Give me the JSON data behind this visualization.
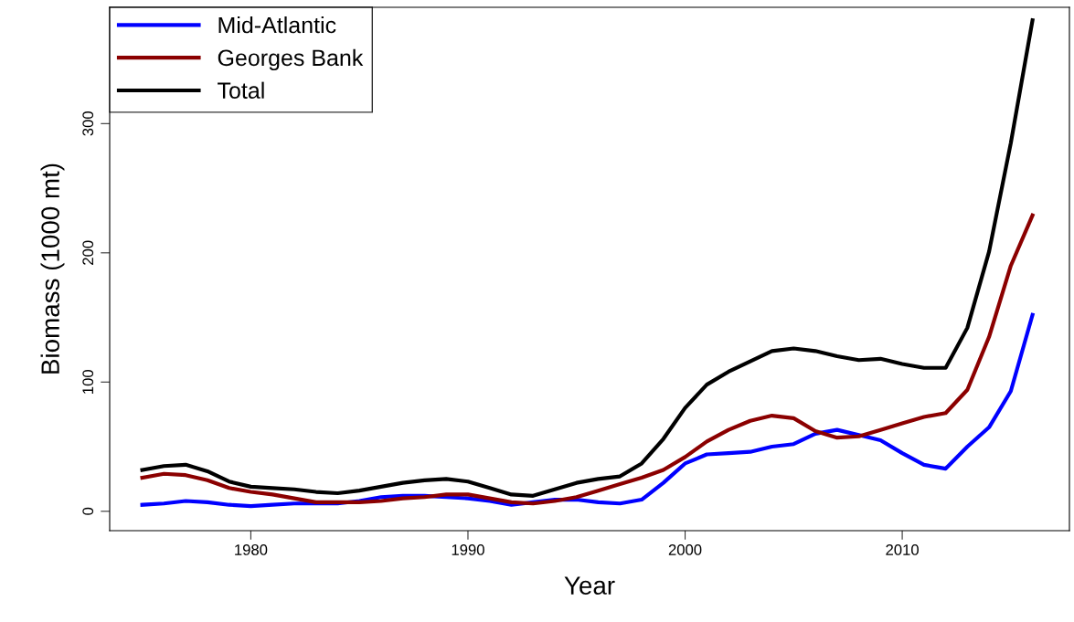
{
  "chart_data": {
    "type": "line",
    "xlabel": "Year",
    "ylabel": "Biomass (1000 mt)",
    "x": [
      1975,
      1976,
      1977,
      1978,
      1979,
      1980,
      1981,
      1982,
      1983,
      1984,
      1985,
      1986,
      1987,
      1988,
      1989,
      1990,
      1991,
      1992,
      1993,
      1994,
      1995,
      1996,
      1997,
      1998,
      1999,
      2000,
      2001,
      2002,
      2003,
      2004,
      2005,
      2006,
      2007,
      2008,
      2009,
      2010,
      2011,
      2012,
      2013,
      2014,
      2015,
      2016
    ],
    "series": [
      {
        "name": "Mid-Atlantic",
        "color": "#0000ff",
        "values": [
          5,
          6,
          8,
          7,
          5,
          4,
          5,
          6,
          6,
          6,
          8,
          11,
          12,
          12,
          11,
          10,
          8,
          5,
          7,
          9,
          9,
          7,
          6,
          9,
          22,
          37,
          44,
          45,
          46,
          50,
          52,
          60,
          63,
          59,
          55,
          45,
          36,
          33,
          50,
          65,
          93,
          152
        ]
      },
      {
        "name": "Georges Bank",
        "color": "#8b0000",
        "values": [
          26,
          29,
          28,
          24,
          18,
          15,
          13,
          10,
          7,
          7,
          7,
          8,
          10,
          11,
          13,
          13,
          10,
          7,
          6,
          8,
          11,
          16,
          21,
          26,
          32,
          42,
          54,
          63,
          70,
          74,
          72,
          62,
          57,
          58,
          63,
          68,
          73,
          76,
          94,
          135,
          190,
          229
        ]
      },
      {
        "name": "Total",
        "color": "#000000",
        "values": [
          32,
          35,
          36,
          31,
          23,
          19,
          18,
          17,
          15,
          14,
          16,
          19,
          22,
          24,
          25,
          23,
          18,
          13,
          12,
          17,
          22,
          25,
          27,
          37,
          56,
          80,
          98,
          108,
          116,
          124,
          126,
          124,
          120,
          117,
          118,
          114,
          111,
          111,
          142,
          201,
          285,
          380
        ]
      }
    ],
    "xlim": [
      1973.5,
      2017.7
    ],
    "ylim": [
      -15,
      390
    ],
    "xticks": [
      1980,
      1990,
      2000,
      2010
    ],
    "yticks": [
      0,
      100,
      200,
      300
    ],
    "grid": false,
    "legend": "top left",
    "marker": "none",
    "line_style": "solid"
  }
}
